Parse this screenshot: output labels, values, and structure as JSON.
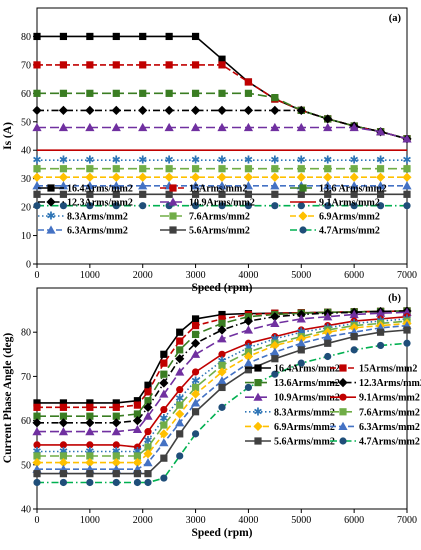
{
  "chart_data": [
    {
      "type": "line",
      "panel_label": "(a)",
      "xlabel": "Speed (rpm)",
      "ylabel": "Is (A)",
      "xlim": [
        0,
        7000
      ],
      "ylim": [
        0,
        90
      ],
      "xticks": [
        0,
        1000,
        2000,
        3000,
        4000,
        5000,
        6000,
        7000
      ],
      "yticks": [
        0,
        10,
        20,
        30,
        40,
        50,
        60,
        70,
        80
      ],
      "grid": false,
      "legend_position": "bottom-inside",
      "series": [
        {
          "name": "16.4Arms/mm2",
          "color": "#000000",
          "marker": "square",
          "dash": "solid",
          "x": [
            0,
            500,
            1000,
            1500,
            2000,
            2500,
            3000,
            3500,
            4000,
            4500,
            5000,
            5500,
            6000,
            6500,
            7000
          ],
          "y": [
            80,
            80,
            80,
            80,
            80,
            80,
            80,
            72,
            64,
            58,
            54,
            51,
            48.5,
            46.5,
            44
          ]
        },
        {
          "name": "15Arms/mm2",
          "color": "#c00000",
          "marker": "square",
          "dash": "dash",
          "x": [
            0,
            500,
            1000,
            1500,
            2000,
            2500,
            3000,
            3500,
            4000,
            4500,
            5000,
            5500,
            6000,
            6500,
            7000
          ],
          "y": [
            70,
            70,
            70,
            70,
            70,
            70,
            70,
            70,
            64,
            58,
            54,
            51,
            48.5,
            46.5,
            44
          ]
        },
        {
          "name": "13.6 Arms/mm2",
          "color": "#3a7d22",
          "marker": "square",
          "dash": "longdash",
          "x": [
            0,
            500,
            1000,
            1500,
            2000,
            2500,
            3000,
            3500,
            4000,
            4500,
            5000,
            5500,
            6000,
            6500,
            7000
          ],
          "y": [
            60,
            60,
            60,
            60,
            60,
            60,
            60,
            60,
            60,
            58.5,
            54,
            51,
            48.5,
            46.5,
            44
          ]
        },
        {
          "name": "12.3Arms/mm2",
          "color": "#000000",
          "marker": "diamond",
          "dash": "dashdot",
          "x": [
            0,
            500,
            1000,
            1500,
            2000,
            2500,
            3000,
            3500,
            4000,
            4500,
            5000,
            5500,
            6000,
            6500,
            7000
          ],
          "y": [
            54,
            54,
            54,
            54,
            54,
            54,
            54,
            54,
            54,
            54,
            54,
            51,
            48.5,
            46.5,
            44
          ]
        },
        {
          "name": "10.9Arms/mm2",
          "color": "#7030a0",
          "marker": "triangle",
          "dash": "longdash",
          "x": [
            0,
            500,
            1000,
            1500,
            2000,
            2500,
            3000,
            3500,
            4000,
            4500,
            5000,
            5500,
            6000,
            6500,
            7000
          ],
          "y": [
            48,
            48,
            48,
            48,
            48,
            48,
            48,
            48,
            48,
            48,
            48,
            48,
            48,
            46.5,
            44
          ]
        },
        {
          "name": "9.1Arms/mm2",
          "color": "#c00000",
          "marker": "none",
          "dash": "solid",
          "x": [
            0,
            7000
          ],
          "y": [
            40,
            40
          ]
        },
        {
          "name": "8.3Arms/mm2",
          "color": "#2e75b6",
          "marker": "star",
          "dash": "dot",
          "x": [
            0,
            500,
            1000,
            1500,
            2000,
            2500,
            3000,
            3500,
            4000,
            4500,
            5000,
            5500,
            6000,
            6500,
            7000
          ],
          "y": [
            36.5,
            36.5,
            36.5,
            36.5,
            36.5,
            36.5,
            36.5,
            36.5,
            36.5,
            36.5,
            36.5,
            36.5,
            36.5,
            36.5,
            36.5
          ]
        },
        {
          "name": "7.6Arms/mm2",
          "color": "#70ad47",
          "marker": "square",
          "dash": "longdash",
          "x": [
            0,
            500,
            1000,
            1500,
            2000,
            2500,
            3000,
            3500,
            4000,
            4500,
            5000,
            5500,
            6000,
            6500,
            7000
          ],
          "y": [
            33.5,
            33.5,
            33.5,
            33.5,
            33.5,
            33.5,
            33.5,
            33.5,
            33.5,
            33.5,
            33.5,
            33.5,
            33.5,
            33.5,
            33.5
          ]
        },
        {
          "name": "6.9Arms/mm2",
          "color": "#ffc000",
          "marker": "diamond",
          "dash": "dash",
          "x": [
            0,
            500,
            1000,
            1500,
            2000,
            2500,
            3000,
            3500,
            4000,
            4500,
            5000,
            5500,
            6000,
            6500,
            7000
          ],
          "y": [
            30.5,
            30.5,
            30.5,
            30.5,
            30.5,
            30.5,
            30.5,
            30.5,
            30.5,
            30.5,
            30.5,
            30.5,
            30.5,
            30.5,
            30.5
          ]
        },
        {
          "name": "6.3Arms/mm2",
          "color": "#4472c4",
          "marker": "triangle",
          "dash": "dash",
          "x": [
            0,
            500,
            1000,
            1500,
            2000,
            2500,
            3000,
            3500,
            4000,
            4500,
            5000,
            5500,
            6000,
            6500,
            7000
          ],
          "y": [
            27.5,
            27.5,
            27.5,
            27.5,
            27.5,
            27.5,
            27.5,
            27.5,
            27.5,
            27.5,
            27.5,
            27.5,
            27.5,
            27.5,
            27.5
          ]
        },
        {
          "name": "5.6Arms/mm2",
          "color": "#404040",
          "marker": "square",
          "dash": "solid",
          "x": [
            0,
            500,
            1000,
            1500,
            2000,
            2500,
            3000,
            3500,
            4000,
            4500,
            5000,
            5500,
            6000,
            6500,
            7000
          ],
          "y": [
            24.5,
            24.5,
            24.5,
            24.5,
            24.5,
            24.5,
            24.5,
            24.5,
            24.5,
            24.5,
            24.5,
            24.5,
            24.5,
            24.5,
            24.5
          ]
        },
        {
          "name": "4.7Arms/mm2",
          "color": "#1f4e79",
          "marker": "circle",
          "dash": "dashdot",
          "x": [
            0,
            500,
            1000,
            1500,
            2000,
            2500,
            3000,
            3500,
            4000,
            4500,
            5000,
            5500,
            6000,
            6500,
            7000
          ],
          "y": [
            20.5,
            20.5,
            20.5,
            20.5,
            20.5,
            20.5,
            20.5,
            20.5,
            20.5,
            20.5,
            20.5,
            20.5,
            20.5,
            20.5,
            20.5
          ],
          "line_color": "#00b050"
        }
      ]
    },
    {
      "type": "line",
      "panel_label": "(b)",
      "xlabel": "Speed (rpm)",
      "ylabel": "Current Phase Angle (deg)",
      "xlim": [
        0,
        7000
      ],
      "ylim": [
        40,
        90
      ],
      "xticks": [
        0,
        1000,
        2000,
        3000,
        4000,
        5000,
        6000,
        7000
      ],
      "yticks": [
        40,
        50,
        60,
        70,
        80
      ],
      "grid": false,
      "legend_position": "bottom-right-inside",
      "series": [
        {
          "name": "16.4Arms/mm2",
          "color": "#000000",
          "marker": "square",
          "dash": "solid",
          "x": [
            0,
            500,
            1000,
            1500,
            1900,
            2100,
            2400,
            2700,
            3000,
            3500,
            4000,
            4500,
            5000,
            5500,
            6000,
            6500,
            7000
          ],
          "y": [
            64,
            64,
            64,
            64,
            64.5,
            68,
            75,
            80,
            83,
            84,
            84.2,
            84.3,
            84.4,
            84.5,
            84.6,
            84.7,
            84.8
          ]
        },
        {
          "name": "15Arms/mm2",
          "color": "#c00000",
          "marker": "square",
          "dash": "dash",
          "x": [
            0,
            500,
            1000,
            1500,
            1900,
            2100,
            2400,
            2700,
            3000,
            3500,
            4000,
            4500,
            5000,
            5500,
            6000,
            6500,
            7000
          ],
          "y": [
            63,
            63,
            63,
            63,
            63.5,
            66.5,
            73,
            78,
            81.5,
            83,
            84,
            84.3,
            84.4,
            84.5,
            84.6,
            84.7,
            84.8
          ]
        },
        {
          "name": "13.6Arms/mm2",
          "color": "#3a7d22",
          "marker": "square",
          "dash": "longdash",
          "x": [
            0,
            500,
            1000,
            1500,
            1900,
            2100,
            2400,
            2700,
            3000,
            3500,
            4000,
            4500,
            5000,
            5500,
            6000,
            6500,
            7000
          ],
          "y": [
            61,
            61,
            61,
            61,
            61.5,
            64.5,
            70.5,
            76,
            79.5,
            82,
            83.5,
            84,
            84.3,
            84.5,
            84.6,
            84.7,
            84.8
          ]
        },
        {
          "name": "12.3Arms/mm2",
          "color": "#000000",
          "marker": "diamond",
          "dash": "dashdot",
          "x": [
            0,
            500,
            1000,
            1500,
            1900,
            2100,
            2400,
            2700,
            3000,
            3500,
            4000,
            4500,
            5000,
            5500,
            6000,
            6500,
            7000
          ],
          "y": [
            59.5,
            59.5,
            59.5,
            59.5,
            60,
            63,
            68.5,
            74,
            77.5,
            80.5,
            82.5,
            83.5,
            84,
            84.3,
            84.5,
            84.7,
            84.8
          ]
        },
        {
          "name": "10.9Arms/mm2",
          "color": "#7030a0",
          "marker": "triangle",
          "dash": "longdash",
          "x": [
            0,
            500,
            1000,
            1500,
            1900,
            2100,
            2400,
            2700,
            3000,
            3500,
            4000,
            4500,
            5000,
            5500,
            6000,
            6500,
            7000
          ],
          "y": [
            57.5,
            57.5,
            57.5,
            57.5,
            58,
            61,
            66,
            71,
            75,
            78.5,
            80.5,
            82,
            83,
            83.5,
            84,
            84.3,
            84.5
          ]
        },
        {
          "name": "9.1Arms/mm2",
          "color": "#c00000",
          "marker": "circle",
          "dash": "solid",
          "x": [
            0,
            500,
            1000,
            1500,
            1900,
            2100,
            2400,
            2700,
            3000,
            3500,
            4000,
            4500,
            5000,
            5500,
            6000,
            6500,
            7000
          ],
          "y": [
            54.5,
            54.5,
            54.5,
            54.5,
            54,
            57.5,
            62.5,
            67,
            71,
            75,
            77.5,
            79,
            80.5,
            81.5,
            82.5,
            83,
            83.5
          ]
        },
        {
          "name": "8.3Arms/mm2",
          "color": "#2e75b6",
          "marker": "star",
          "dash": "dot",
          "x": [
            0,
            500,
            1000,
            1500,
            1900,
            2100,
            2400,
            2700,
            3000,
            3500,
            4000,
            4500,
            5000,
            5500,
            6000,
            6500,
            7000
          ],
          "y": [
            53,
            53,
            53,
            53,
            53,
            55.5,
            60.5,
            65,
            69,
            73.5,
            76.5,
            78.5,
            80,
            81,
            82,
            82.5,
            83
          ]
        },
        {
          "name": "7.6Arms/mm2",
          "color": "#70ad47",
          "marker": "square",
          "dash": "longdash",
          "x": [
            0,
            500,
            1000,
            1500,
            1900,
            2100,
            2400,
            2700,
            3000,
            3500,
            4000,
            4500,
            5000,
            5500,
            6000,
            6500,
            7000
          ],
          "y": [
            52,
            52,
            52,
            52,
            52,
            54,
            59,
            63.5,
            67.5,
            72.5,
            75.5,
            77.5,
            79,
            80.5,
            81.5,
            82,
            82.5
          ]
        },
        {
          "name": "6.9Arms/mm2",
          "color": "#ffc000",
          "marker": "diamond",
          "dash": "dash",
          "x": [
            0,
            500,
            1000,
            1500,
            1900,
            2100,
            2400,
            2700,
            3000,
            3500,
            4000,
            4500,
            5000,
            5500,
            6000,
            6500,
            7000
          ],
          "y": [
            50.5,
            50.5,
            50.5,
            50.5,
            50.5,
            52.5,
            57,
            61.5,
            66,
            71,
            74.5,
            77,
            78.5,
            80,
            81,
            81.5,
            82
          ]
        },
        {
          "name": "6.3Arms/mm2",
          "color": "#4472c4",
          "marker": "triangle",
          "dash": "dash",
          "x": [
            0,
            500,
            1000,
            1500,
            1900,
            2100,
            2400,
            2700,
            3000,
            3500,
            4000,
            4500,
            5000,
            5500,
            6000,
            6500,
            7000
          ],
          "y": [
            49,
            49,
            49,
            49,
            49,
            50.5,
            55,
            59.5,
            64,
            69,
            73,
            75.5,
            77.5,
            79,
            80,
            81,
            81.5
          ]
        },
        {
          "name": "5.6Arms/mm2",
          "color": "#404040",
          "marker": "square",
          "dash": "solid",
          "x": [
            0,
            500,
            1000,
            1500,
            1900,
            2100,
            2400,
            2700,
            3000,
            3500,
            4000,
            4500,
            5000,
            5500,
            6000,
            6500,
            7000
          ],
          "y": [
            48,
            48,
            48,
            48,
            48,
            48,
            51.5,
            57,
            62,
            67.5,
            71.5,
            74,
            76,
            77.5,
            79,
            80,
            80.5
          ]
        },
        {
          "name": "4.7Arms/mm2",
          "color": "#1f4e79",
          "marker": "circle",
          "dash": "dashdot",
          "x": [
            0,
            500,
            1000,
            1500,
            1900,
            2100,
            2400,
            2700,
            3000,
            3500,
            4000,
            4500,
            5000,
            5500,
            6000,
            6500,
            7000
          ],
          "y": [
            46,
            46,
            46,
            46,
            46,
            46,
            47,
            52,
            57,
            63,
            67.5,
            70.5,
            73,
            74.5,
            76,
            77,
            77.5
          ],
          "line_color": "#00b050"
        }
      ]
    }
  ]
}
